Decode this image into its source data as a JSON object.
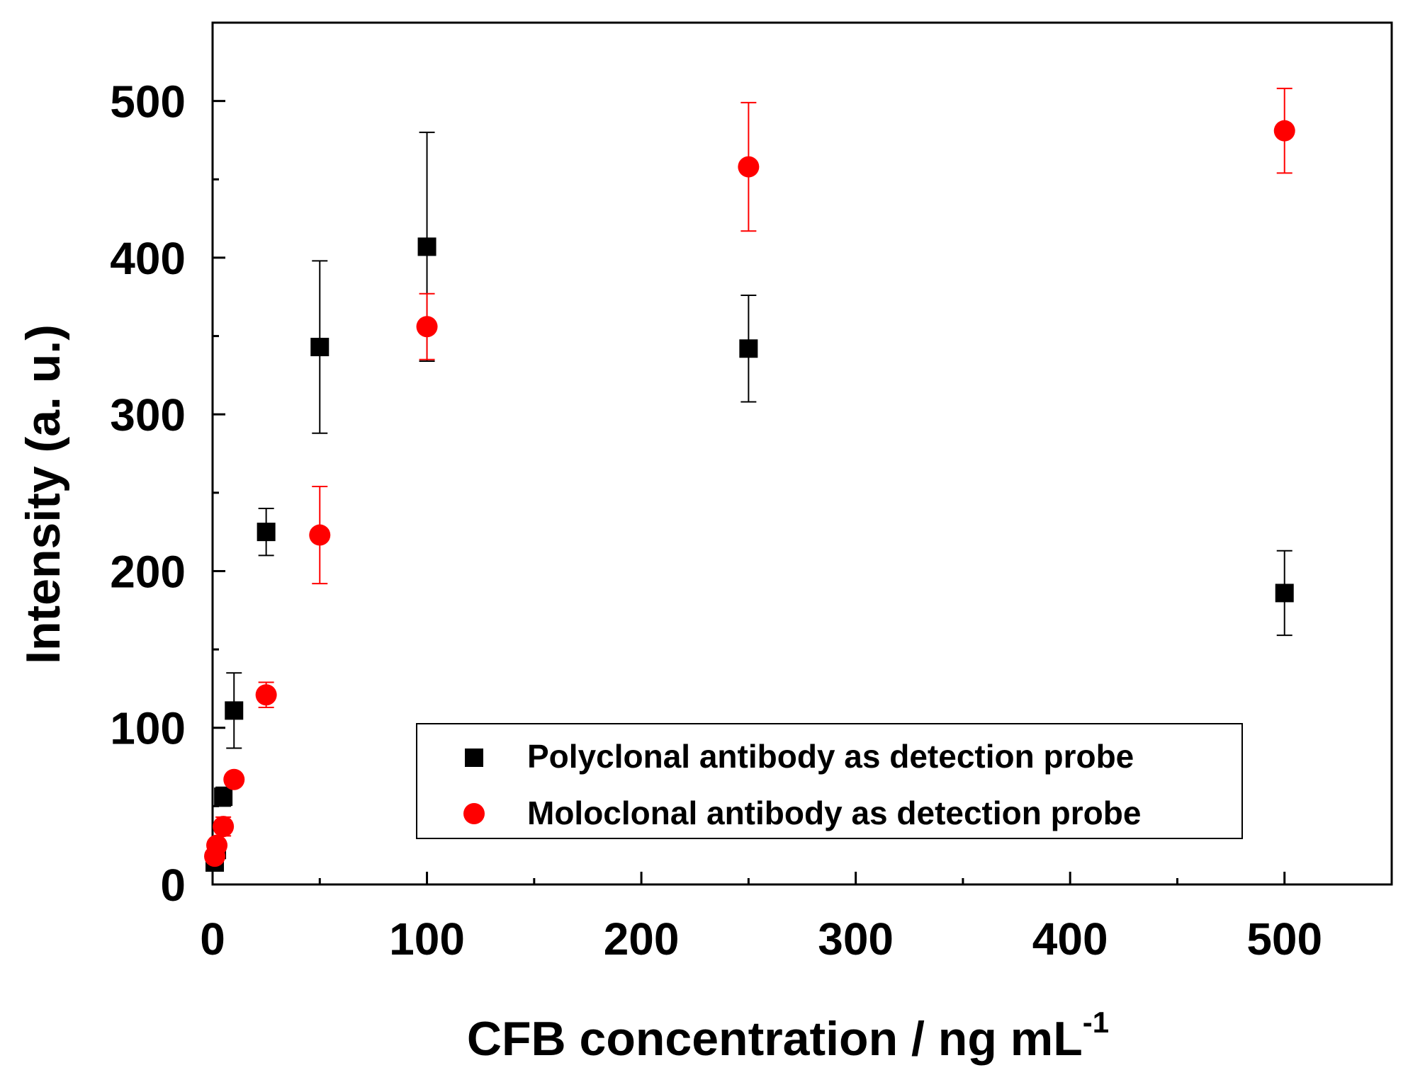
{
  "chart_data": {
    "type": "scatter",
    "title": "",
    "xlabel": "CFB concentration / ng mL",
    "xlabel_superscript": "-1",
    "ylabel": "Intensity (a. u.)",
    "xlim": [
      0,
      550
    ],
    "ylim": [
      0,
      550
    ],
    "x_ticks": [
      0,
      100,
      200,
      300,
      400,
      500
    ],
    "y_ticks": [
      0,
      100,
      200,
      300,
      400,
      500
    ],
    "x_minor_step": 50,
    "y_minor_step": 50,
    "grid": false,
    "legend_position": "lower-right",
    "series": [
      {
        "name": "Polyclonal antibody as detection probe",
        "marker": "square",
        "color": "#000000",
        "points": [
          {
            "x": 1,
            "y": 14,
            "err": 4
          },
          {
            "x": 2,
            "y": 22,
            "err": 5
          },
          {
            "x": 5,
            "y": 56,
            "err": 6
          },
          {
            "x": 10,
            "y": 111,
            "err": 24
          },
          {
            "x": 25,
            "y": 225,
            "err": 15
          },
          {
            "x": 50,
            "y": 343,
            "err": 55
          },
          {
            "x": 100,
            "y": 407,
            "err": 73
          },
          {
            "x": 250,
            "y": 342,
            "err": 34
          },
          {
            "x": 500,
            "y": 186,
            "err": 27
          }
        ]
      },
      {
        "name": "Moloclonal antibody as detection probe",
        "marker": "circle",
        "color": "#ff0000",
        "points": [
          {
            "x": 1,
            "y": 18,
            "err": 3
          },
          {
            "x": 2,
            "y": 25,
            "err": 4
          },
          {
            "x": 5,
            "y": 37,
            "err": 6
          },
          {
            "x": 10,
            "y": 67,
            "err": 4
          },
          {
            "x": 25,
            "y": 121,
            "err": 8
          },
          {
            "x": 50,
            "y": 223,
            "err": 31
          },
          {
            "x": 100,
            "y": 356,
            "err": 21
          },
          {
            "x": 250,
            "y": 458,
            "err": 41
          },
          {
            "x": 500,
            "y": 481,
            "err": 27
          }
        ]
      }
    ]
  }
}
